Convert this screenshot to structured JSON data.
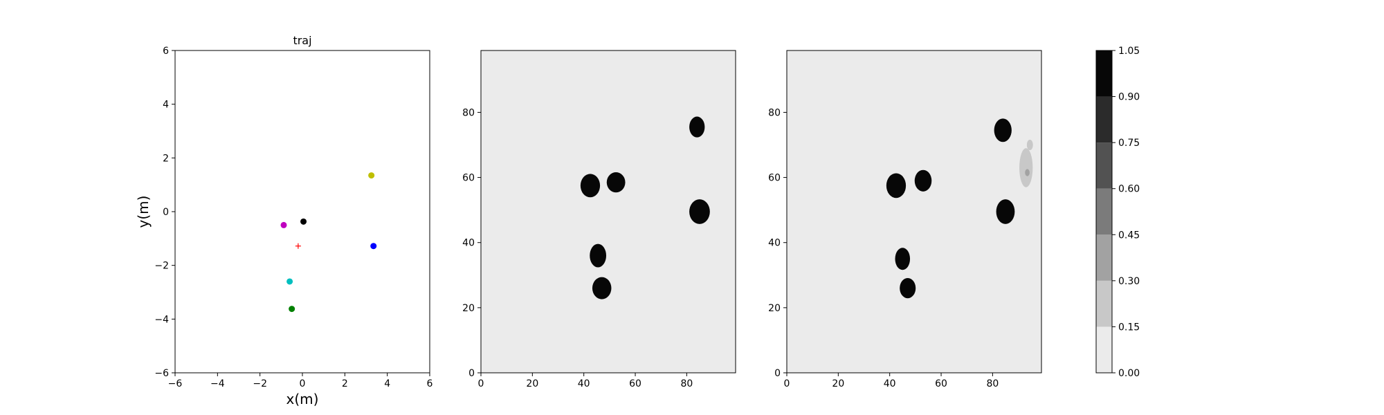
{
  "chart_data": [
    {
      "type": "scatter",
      "title": "traj",
      "xlabel": "x(m)",
      "ylabel": "y(m)",
      "xlim": [
        -6,
        6
      ],
      "ylim": [
        -6,
        6
      ],
      "xticks": [
        -6,
        -4,
        -2,
        0,
        2,
        4,
        6
      ],
      "yticks": [
        -6,
        -4,
        -2,
        0,
        2,
        4,
        6
      ],
      "grid": false,
      "points": [
        {
          "x": 3.25,
          "y": 1.35,
          "color": "#bfbf00",
          "marker": "circle"
        },
        {
          "x": 0.05,
          "y": -0.37,
          "color": "#000000",
          "marker": "circle"
        },
        {
          "x": -0.88,
          "y": -0.5,
          "color": "#bf00bf",
          "marker": "circle"
        },
        {
          "x": 3.35,
          "y": -1.28,
          "color": "#0000ff",
          "marker": "circle"
        },
        {
          "x": -0.2,
          "y": -1.28,
          "color": "#ff0000",
          "marker": "plus"
        },
        {
          "x": -0.6,
          "y": -2.6,
          "color": "#00bfbf",
          "marker": "circle"
        },
        {
          "x": -0.5,
          "y": -3.62,
          "color": "#008000",
          "marker": "circle"
        }
      ]
    },
    {
      "type": "heatmap",
      "xlim": [
        0,
        99
      ],
      "ylim": [
        0,
        99
      ],
      "xticks": [
        0,
        20,
        40,
        60,
        80
      ],
      "yticks": [
        0,
        20,
        40,
        60,
        80
      ],
      "background_level": 0.07,
      "blobs": [
        {
          "x": 84,
          "y": 75.5,
          "rx": 3,
          "ry": 3.2,
          "level": 0.95
        },
        {
          "x": 42.5,
          "y": 57.5,
          "rx": 3.8,
          "ry": 3.6,
          "level": 0.95
        },
        {
          "x": 52.5,
          "y": 58.5,
          "rx": 3.6,
          "ry": 3.1,
          "level": 0.95
        },
        {
          "x": 85,
          "y": 49.5,
          "rx": 4,
          "ry": 3.8,
          "level": 0.95
        },
        {
          "x": 45.5,
          "y": 36,
          "rx": 3.2,
          "ry": 3.6,
          "level": 0.95
        },
        {
          "x": 47,
          "y": 26,
          "rx": 3.7,
          "ry": 3.4,
          "level": 0.95
        }
      ]
    },
    {
      "type": "heatmap",
      "xlim": [
        0,
        99
      ],
      "ylim": [
        0,
        99
      ],
      "xticks": [
        0,
        20,
        40,
        60,
        80
      ],
      "yticks": [
        0,
        20,
        40,
        60,
        80
      ],
      "background_level": 0.07,
      "blobs": [
        {
          "x": 84,
          "y": 74.5,
          "rx": 3.4,
          "ry": 3.6,
          "level": 0.95
        },
        {
          "x": 42.5,
          "y": 57.5,
          "rx": 3.8,
          "ry": 3.8,
          "level": 0.95
        },
        {
          "x": 53,
          "y": 59,
          "rx": 3.3,
          "ry": 3.3,
          "level": 0.95
        },
        {
          "x": 85,
          "y": 49.5,
          "rx": 3.6,
          "ry": 3.8,
          "level": 0.95
        },
        {
          "x": 45,
          "y": 35,
          "rx": 2.9,
          "ry": 3.4,
          "level": 0.95
        },
        {
          "x": 47,
          "y": 26,
          "rx": 3.1,
          "ry": 3.1,
          "level": 0.95
        },
        {
          "x": 93,
          "y": 63,
          "rx": 2.6,
          "ry": 6,
          "level": 0.25
        },
        {
          "x": 94.5,
          "y": 70,
          "rx": 1.2,
          "ry": 1.6,
          "level": 0.25
        },
        {
          "x": 93.5,
          "y": 61.5,
          "rx": 0.9,
          "ry": 1.1,
          "level": 0.4
        }
      ]
    }
  ],
  "colorbar": {
    "levels": [
      0.0,
      0.15,
      0.3,
      0.45,
      0.6,
      0.75,
      0.9,
      1.05
    ],
    "tick_labels": [
      "0.00",
      "0.15",
      "0.30",
      "0.45",
      "0.60",
      "0.75",
      "0.90",
      "1.05"
    ],
    "colors": [
      "#ebebeb",
      "#c8c8c8",
      "#a2a2a2",
      "#7b7b7b",
      "#525252",
      "#2b2b2b",
      "#070707"
    ]
  }
}
